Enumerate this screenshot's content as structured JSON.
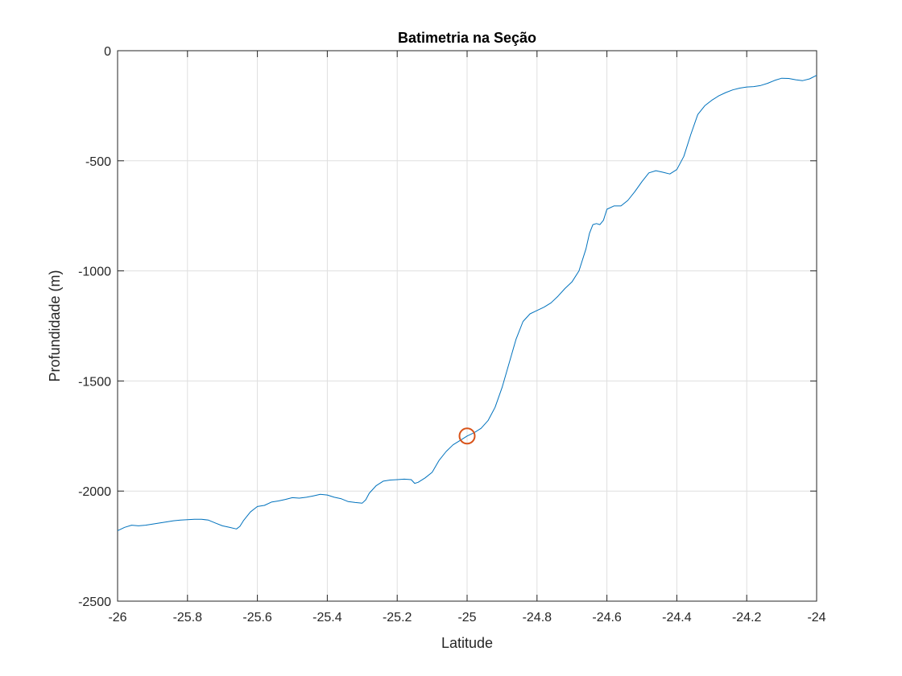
{
  "chart_data": {
    "type": "line",
    "title": "Batimetria na Seção",
    "xlabel": "Latitude",
    "ylabel": "Profundidade (m)",
    "xlim": [
      -26,
      -24
    ],
    "ylim": [
      -2500,
      0
    ],
    "xticks": [
      -26,
      -25.8,
      -25.6,
      -25.4,
      -25.2,
      -25,
      -24.8,
      -24.6,
      -24.4,
      -24.2,
      -24
    ],
    "xtick_labels": [
      "-26",
      "-25.8",
      "-25.6",
      "-25.4",
      "-25.2",
      "-25",
      "-24.8",
      "-24.6",
      "-24.4",
      "-24.2",
      "-24"
    ],
    "yticks": [
      -2500,
      -2000,
      -1500,
      -1000,
      -500,
      0
    ],
    "ytick_labels": [
      "-2500",
      "-2000",
      "-1500",
      "-1000",
      "-500",
      "0"
    ],
    "grid": true,
    "series": [
      {
        "color": "#0072bd",
        "x": [
          -26.0,
          -25.98,
          -25.96,
          -25.94,
          -25.92,
          -25.9,
          -25.88,
          -25.86,
          -25.84,
          -25.82,
          -25.8,
          -25.78,
          -25.76,
          -25.74,
          -25.72,
          -25.7,
          -25.68,
          -25.66,
          -25.65,
          -25.64,
          -25.62,
          -25.6,
          -25.58,
          -25.56,
          -25.54,
          -25.52,
          -25.5,
          -25.48,
          -25.46,
          -25.44,
          -25.42,
          -25.4,
          -25.38,
          -25.36,
          -25.34,
          -25.32,
          -25.3,
          -25.29,
          -25.28,
          -25.26,
          -25.24,
          -25.22,
          -25.2,
          -25.18,
          -25.16,
          -25.15,
          -25.14,
          -25.12,
          -25.1,
          -25.08,
          -25.06,
          -25.04,
          -25.02,
          -25.0,
          -24.98,
          -24.96,
          -24.94,
          -24.92,
          -24.9,
          -24.88,
          -24.86,
          -24.84,
          -24.82,
          -24.8,
          -24.78,
          -24.76,
          -24.74,
          -24.72,
          -24.7,
          -24.68,
          -24.66,
          -24.65,
          -24.64,
          -24.63,
          -24.62,
          -24.61,
          -24.6,
          -24.58,
          -24.56,
          -24.54,
          -24.52,
          -24.5,
          -24.48,
          -24.46,
          -24.44,
          -24.42,
          -24.4,
          -24.38,
          -24.36,
          -24.34,
          -24.32,
          -24.3,
          -24.28,
          -24.26,
          -24.24,
          -24.22,
          -24.2,
          -24.18,
          -24.16,
          -24.14,
          -24.12,
          -24.1,
          -24.08,
          -24.06,
          -24.04,
          -24.02,
          -24.0
        ],
        "y": [
          -2180,
          -2165,
          -2155,
          -2158,
          -2155,
          -2150,
          -2145,
          -2140,
          -2135,
          -2132,
          -2130,
          -2128,
          -2128,
          -2132,
          -2145,
          -2158,
          -2165,
          -2172,
          -2160,
          -2135,
          -2095,
          -2070,
          -2065,
          -2050,
          -2045,
          -2038,
          -2030,
          -2032,
          -2028,
          -2022,
          -2015,
          -2018,
          -2028,
          -2035,
          -2048,
          -2052,
          -2055,
          -2040,
          -2010,
          -1975,
          -1955,
          -1950,
          -1948,
          -1946,
          -1948,
          -1965,
          -1960,
          -1940,
          -1915,
          -1860,
          -1820,
          -1790,
          -1770,
          -1750,
          -1735,
          -1715,
          -1680,
          -1620,
          -1530,
          -1420,
          -1310,
          -1230,
          -1195,
          -1180,
          -1165,
          -1145,
          -1115,
          -1080,
          -1050,
          -1000,
          -900,
          -830,
          -790,
          -785,
          -790,
          -770,
          -720,
          -705,
          -705,
          -680,
          -640,
          -595,
          -555,
          -545,
          -552,
          -560,
          -540,
          -480,
          -380,
          -290,
          -250,
          -225,
          -205,
          -190,
          -178,
          -170,
          -165,
          -163,
          -158,
          -148,
          -135,
          -125,
          -126,
          -132,
          -136,
          -128,
          -112
        ]
      }
    ],
    "marker": {
      "x": -25.0,
      "y": -1750,
      "color": "#d95319"
    }
  }
}
